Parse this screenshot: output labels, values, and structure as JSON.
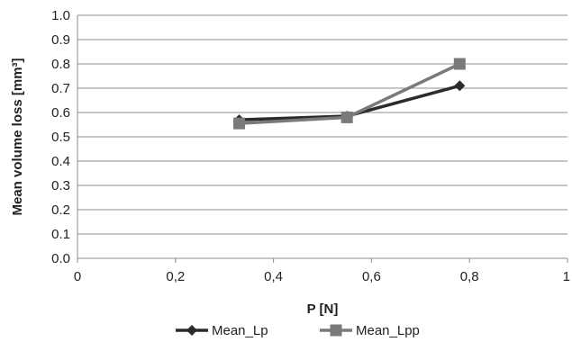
{
  "chart_data": {
    "type": "line",
    "title": "",
    "xlabel": "P [N]",
    "ylabel": "Mean volume loss [mm³]",
    "xlim": [
      0,
      1
    ],
    "ylim": [
      0,
      1
    ],
    "x_ticks": [
      "0",
      "0,2",
      "0,4",
      "0,6",
      "0,8",
      "1"
    ],
    "y_ticks": [
      "0.0",
      "0.1",
      "0.2",
      "0.3",
      "0.4",
      "0.5",
      "0.6",
      "0.7",
      "0.8",
      "0.9",
      "1.0"
    ],
    "grid": "horizontal",
    "legend_position": "bottom",
    "series": [
      {
        "name": "Mean_Lp",
        "marker": "diamond",
        "color": "#2b2b2b",
        "x": [
          0.33,
          0.55,
          0.78
        ],
        "y": [
          0.57,
          0.585,
          0.71
        ]
      },
      {
        "name": "Mean_Lpp",
        "marker": "square",
        "color": "#7a7a7a",
        "x": [
          0.33,
          0.55,
          0.78
        ],
        "y": [
          0.555,
          0.58,
          0.8
        ]
      }
    ]
  }
}
